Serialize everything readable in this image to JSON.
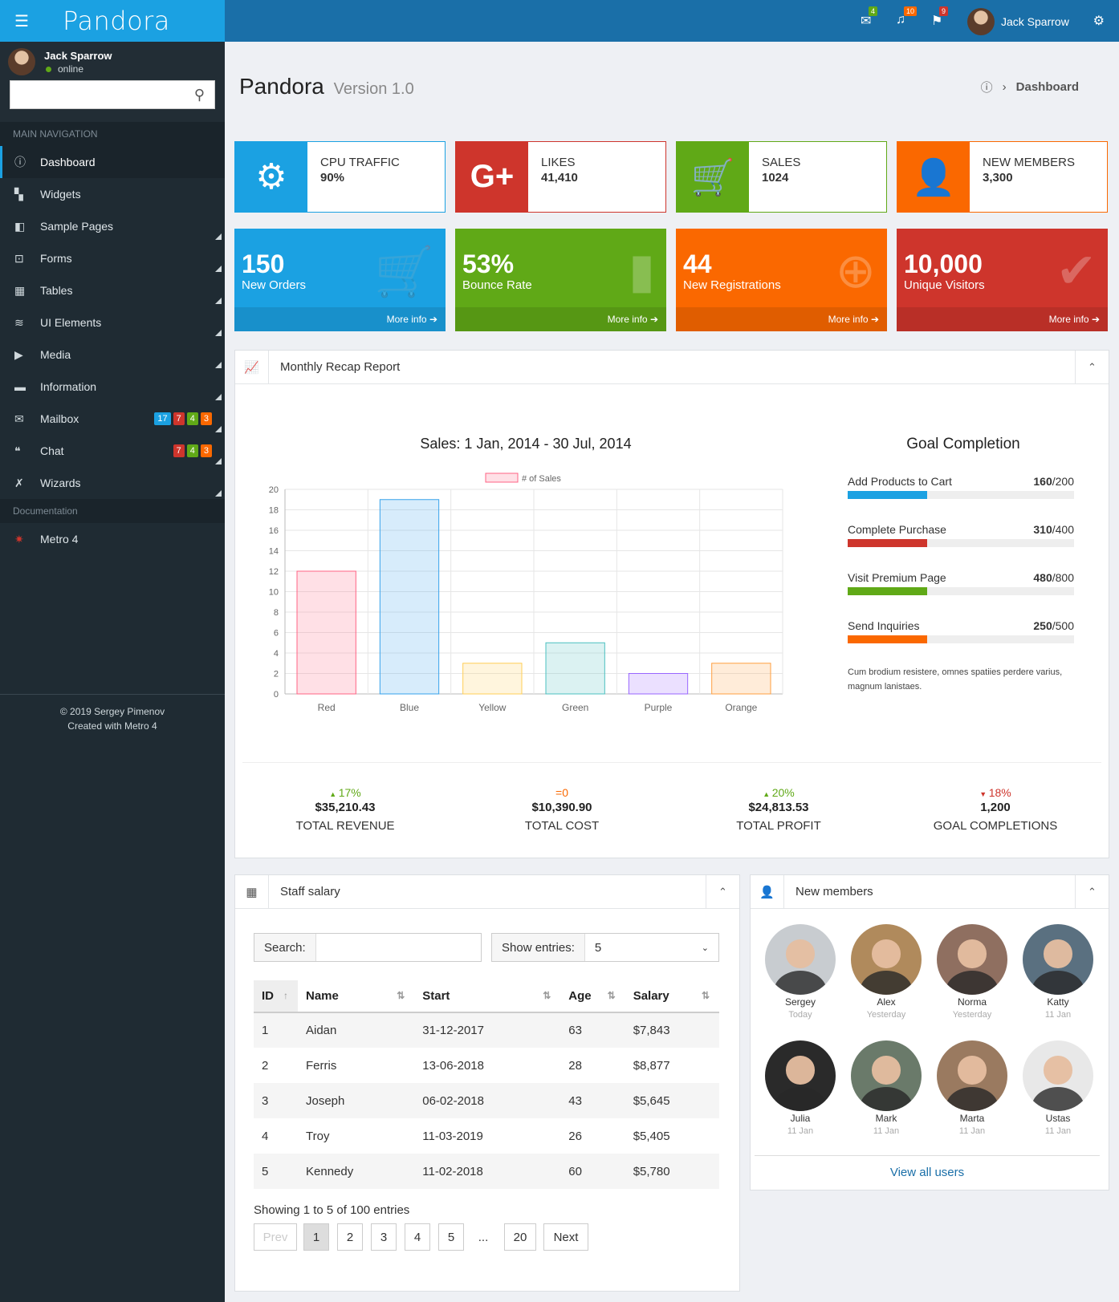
{
  "brand": "Pandora",
  "user": {
    "name": "Jack Sparrow",
    "status": "online"
  },
  "sidebar": {
    "nav_header": "MAIN NAVIGATION",
    "items": [
      {
        "label": "Dashboard",
        "icon": "dashboard-icon"
      },
      {
        "label": "Widgets",
        "icon": "widgets-icon"
      },
      {
        "label": "Sample Pages",
        "icon": "pages-icon"
      },
      {
        "label": "Forms",
        "icon": "forms-icon"
      },
      {
        "label": "Tables",
        "icon": "table-icon"
      },
      {
        "label": "UI Elements",
        "icon": "ui-elements-icon"
      },
      {
        "label": "Media",
        "icon": "play-icon"
      },
      {
        "label": "Information",
        "icon": "info-icon"
      },
      {
        "label": "Mailbox",
        "icon": "mail-icon",
        "badges": [
          "17",
          "7",
          "4",
          "3"
        ]
      },
      {
        "label": "Chat",
        "icon": "chat-icon",
        "badges": [
          "7",
          "4",
          "3"
        ]
      },
      {
        "label": "Wizards",
        "icon": "wand-icon"
      }
    ],
    "doc_header": "Documentation",
    "doc_item": "Metro 4",
    "footer1": "© 2019 Sergey Pimenov",
    "footer2": "Created with Metro 4"
  },
  "topbar": {
    "mail_count": "4",
    "bell_count": "10",
    "flag_count": "9",
    "user": "Jack Sparrow"
  },
  "page": {
    "title": "Pandora",
    "version": "Version 1.0",
    "crumb": "Dashboard"
  },
  "infoboxes": [
    {
      "title": "CPU TRAFFIC",
      "value": "90%",
      "color": "#1ba1e2",
      "icon": "gear-icon"
    },
    {
      "title": "LIKES",
      "value": "41,410",
      "color": "#ce352c",
      "icon": "google-plus-icon"
    },
    {
      "title": "SALES",
      "value": "1024",
      "color": "#60a917",
      "icon": "cart-icon"
    },
    {
      "title": "NEW MEMBERS",
      "value": "3,300",
      "color": "#fa6800",
      "icon": "users-icon"
    }
  ],
  "tiles": [
    {
      "value": "150",
      "label": "New Orders",
      "more": "More info",
      "color": "#1ba1e2",
      "icon": "cart-icon"
    },
    {
      "value": "53%",
      "label": "Bounce Rate",
      "more": "More info",
      "color": "#60a917",
      "icon": "bar-chart-icon"
    },
    {
      "value": "44",
      "label": "New Registrations",
      "more": "More info",
      "color": "#fa6800",
      "icon": "user-add-icon"
    },
    {
      "value": "10,000",
      "label": "Unique Visitors",
      "more": "More info",
      "color": "#ce352c",
      "icon": "user-check-icon"
    }
  ],
  "recap": {
    "title": "Monthly Recap Report",
    "chart_title": "Sales: 1 Jan, 2014 - 30 Jul, 2014",
    "goal_title": "Goal Completion",
    "goals": [
      {
        "label": "Add Products to Cart",
        "value": "160",
        "total": "/200",
        "fraction": 0.35,
        "color": "#1ba1e2"
      },
      {
        "label": "Complete Purchase",
        "value": "310",
        "total": "/400",
        "fraction": 0.35,
        "color": "#ce352c"
      },
      {
        "label": "Visit Premium Page",
        "value": "480",
        "total": "/800",
        "fraction": 0.35,
        "color": "#60a917"
      },
      {
        "label": "Send Inquiries",
        "value": "250",
        "total": "/500",
        "fraction": 0.35,
        "color": "#fa6800"
      }
    ],
    "goal_note": "Cum brodium resistere, omnes spatiies perdere varius, magnum lanistaes.",
    "stats": [
      {
        "change": "17%",
        "dir": "up",
        "value": "$35,210.43",
        "label": "TOTAL REVENUE",
        "color": "#60a917"
      },
      {
        "change": "=0",
        "dir": "eq",
        "value": "$10,390.90",
        "label": "TOTAL COST",
        "color": "#fa6800"
      },
      {
        "change": "20%",
        "dir": "up",
        "value": "$24,813.53",
        "label": "TOTAL PROFIT",
        "color": "#60a917"
      },
      {
        "change": "18%",
        "dir": "down",
        "value": "1,200",
        "label": "GOAL COMPLETIONS",
        "color": "#ce352c"
      }
    ]
  },
  "chart_data": {
    "type": "bar",
    "title": "Sales: 1 Jan, 2014 - 30 Jul, 2014",
    "categories": [
      "Red",
      "Blue",
      "Yellow",
      "Green",
      "Purple",
      "Orange"
    ],
    "series": [
      {
        "name": "# of Sales",
        "values": [
          12,
          19,
          3,
          5,
          2,
          3
        ]
      }
    ],
    "ylim": [
      0,
      20
    ],
    "yticks": [
      0,
      2,
      4,
      6,
      8,
      10,
      12,
      14,
      16,
      18,
      20
    ],
    "colors": [
      "#ff6384",
      "#36a2eb",
      "#ffce56",
      "#4bc0c0",
      "#9966ff",
      "#ff9f40"
    ],
    "legend": "top",
    "grid": true
  },
  "staff": {
    "title": "Staff salary",
    "search_label": "Search:",
    "entries_label": "Show entries:",
    "entries_value": "5",
    "columns": [
      "ID",
      "Name",
      "Start",
      "Age",
      "Salary"
    ],
    "rows": [
      [
        "1",
        "Aidan",
        "31-12-2017",
        "63",
        "$7,843"
      ],
      [
        "2",
        "Ferris",
        "13-06-2018",
        "28",
        "$8,877"
      ],
      [
        "3",
        "Joseph",
        "06-02-2018",
        "43",
        "$5,645"
      ],
      [
        "4",
        "Troy",
        "11-03-2019",
        "26",
        "$5,405"
      ],
      [
        "5",
        "Kennedy",
        "11-02-2018",
        "60",
        "$5,780"
      ]
    ],
    "showing": "Showing 1 to 5 of 100 entries",
    "pager": [
      "Prev",
      "1",
      "2",
      "3",
      "4",
      "5",
      "...",
      "20",
      "Next"
    ]
  },
  "members": {
    "title": "New members",
    "view_all": "View all users",
    "list": [
      {
        "name": "Sergey",
        "date": "Today"
      },
      {
        "name": "Alex",
        "date": "Yesterday"
      },
      {
        "name": "Norma",
        "date": "Yesterday"
      },
      {
        "name": "Katty",
        "date": "11 Jan"
      },
      {
        "name": "Julia",
        "date": "11 Jan"
      },
      {
        "name": "Mark",
        "date": "11 Jan"
      },
      {
        "name": "Marta",
        "date": "11 Jan"
      },
      {
        "name": "Ustas",
        "date": "11 Jan"
      }
    ]
  }
}
